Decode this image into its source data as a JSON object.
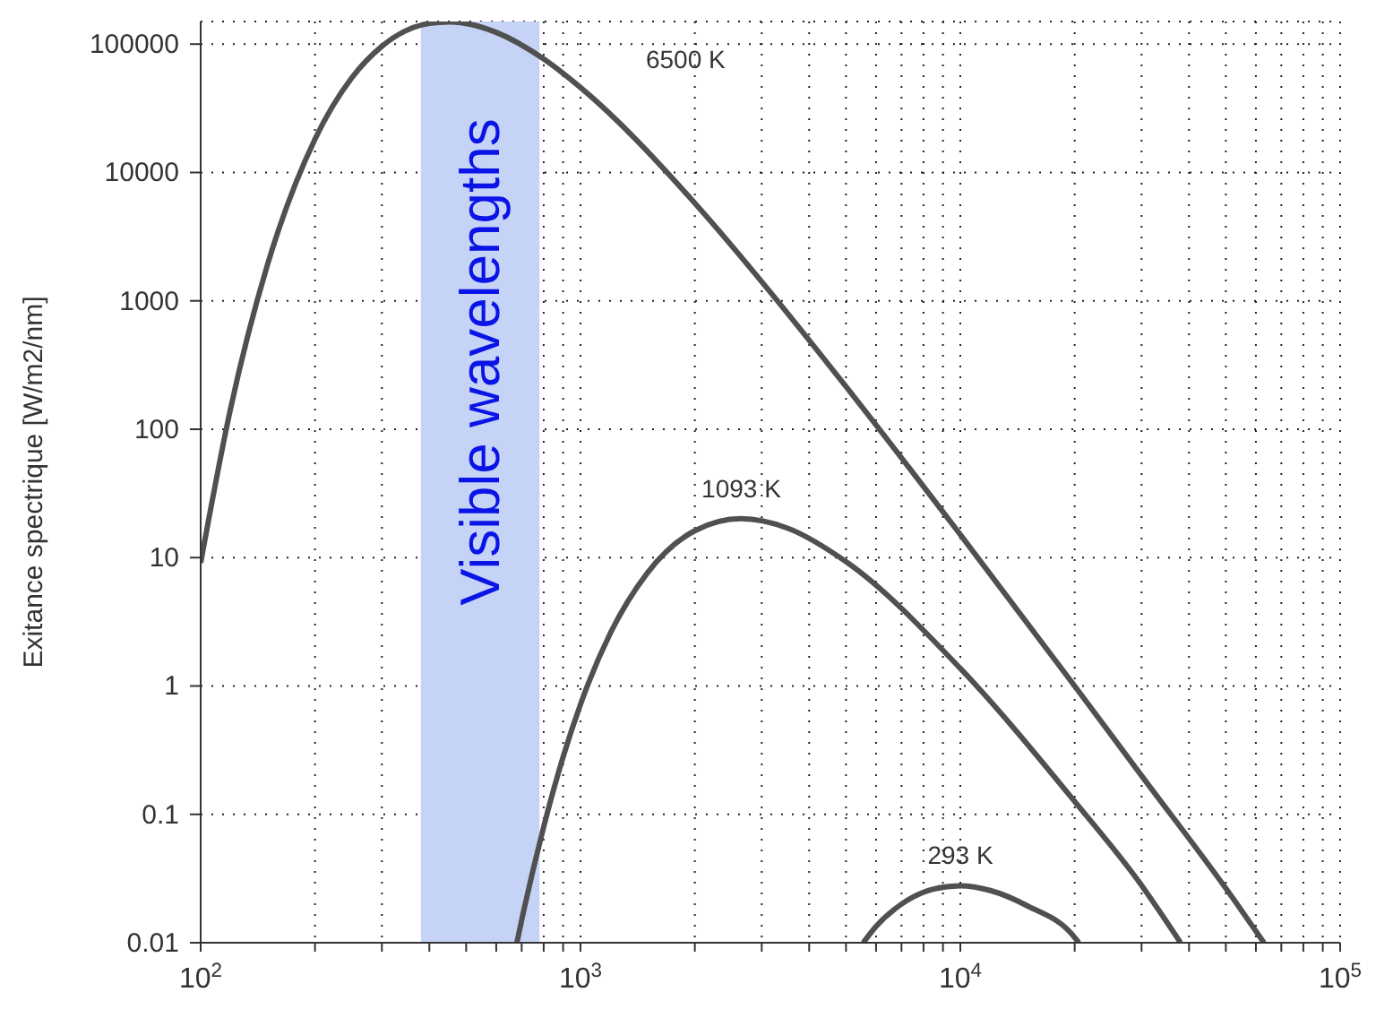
{
  "chart_data": {
    "type": "line",
    "ylabel": "Exitance spectrique [W/m2/nm]",
    "log": "xy",
    "grid": true,
    "marker": "none",
    "line_style": "solid",
    "xlim": [
      100,
      100000
    ],
    "ylim": [
      0.01,
      150000
    ],
    "xticks": [
      {
        "value": 100,
        "label": "10$^{2}$"
      },
      {
        "value": 200,
        "label": null
      },
      {
        "value": 300,
        "label": null
      },
      {
        "value": 400,
        "label": null
      },
      {
        "value": 500,
        "label": null
      },
      {
        "value": 600,
        "label": null
      },
      {
        "value": 700,
        "label": null
      },
      {
        "value": 800,
        "label": null
      },
      {
        "value": 900,
        "label": null
      },
      {
        "value": 1000,
        "label": "10$^{3}$"
      },
      {
        "value": 2000,
        "label": null
      },
      {
        "value": 3000,
        "label": null
      },
      {
        "value": 4000,
        "label": null
      },
      {
        "value": 5000,
        "label": null
      },
      {
        "value": 6000,
        "label": null
      },
      {
        "value": 7000,
        "label": null
      },
      {
        "value": 8000,
        "label": null
      },
      {
        "value": 9000,
        "label": null
      },
      {
        "value": 10000,
        "label": "10$^{4}$"
      },
      {
        "value": 20000,
        "label": null
      },
      {
        "value": 30000,
        "label": null
      },
      {
        "value": 40000,
        "label": null
      },
      {
        "value": 50000,
        "label": null
      },
      {
        "value": 60000,
        "label": null
      },
      {
        "value": 70000,
        "label": null
      },
      {
        "value": 80000,
        "label": null
      },
      {
        "value": 90000,
        "label": null
      },
      {
        "value": 100000,
        "label": "10$^{5}$"
      }
    ],
    "yticks": [
      0.01,
      0.1,
      1,
      10,
      100,
      1000,
      10000,
      100000
    ],
    "bands": [
      {
        "axis": "x",
        "from": 380,
        "to": 780,
        "label": "Visible wavelengths",
        "color": "#c5d3f7"
      }
    ],
    "series": [
      {
        "name": "6500 K",
        "color": "#505050",
        "x": [
          100,
          120,
          150,
          200,
          250,
          300,
          400,
          450,
          500,
          600,
          800,
          1000,
          2000,
          3000,
          5000,
          10000,
          20000,
          30000,
          50000,
          63000
        ],
        "values": [
          9.1,
          147,
          1918,
          18210,
          54700,
          96300,
          145000,
          149000,
          144800,
          123400,
          76600,
          45900,
          5774,
          1411,
          215,
          15.1,
          1.0,
          0.2,
          0.0265,
          0.01
        ]
      },
      {
        "name": "1093 K",
        "color": "#505050",
        "x": [
          680,
          700,
          800,
          900,
          1000,
          1200,
          1500,
          2000,
          2650,
          3500,
          5000,
          10000,
          20000,
          30000,
          38000
        ],
        "values": [
          0.01,
          0.015,
          0.08,
          0.28,
          0.72,
          2.6,
          7.6,
          16.2,
          20.1,
          17,
          9.3,
          1.37,
          0.126,
          0.028,
          0.01
        ]
      },
      {
        "name": "293 K",
        "color": "#505050",
        "x": [
          5550,
          6000,
          7000,
          8500,
          10000,
          12000,
          15000,
          20000,
          20500
        ],
        "values": [
          0.01,
          0.0134,
          0.02,
          0.0262,
          0.0278,
          0.0255,
          0.0194,
          0.011,
          0.01
        ]
      }
    ]
  }
}
